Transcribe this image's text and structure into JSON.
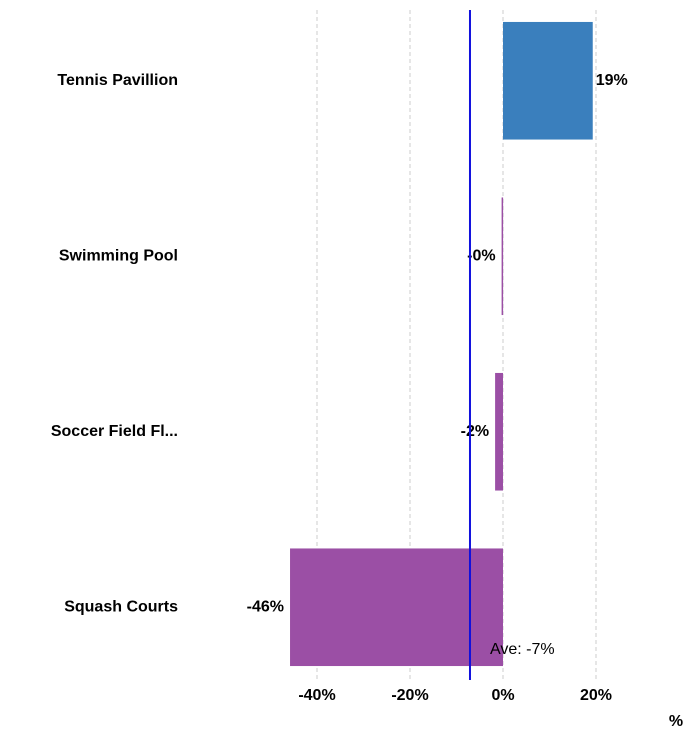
{
  "chart_data": {
    "type": "bar",
    "orientation": "horizontal",
    "categories": [
      "Tennis Pavillion",
      "Swimming Pool",
      "Soccer Field Fl...",
      "Squash Courts"
    ],
    "values": [
      19.3,
      -0.3,
      -1.7,
      -45.8
    ],
    "value_labels": [
      "19%",
      "-0%",
      "-2%",
      "-46%"
    ],
    "colors": [
      "#3a7fbd",
      "#9b4fa5",
      "#9b4fa5",
      "#9b4fa5"
    ],
    "xlim": [
      -50,
      40
    ],
    "xticks": [
      {
        "value": -40,
        "label": "-40%"
      },
      {
        "value": -20,
        "label": "-20%"
      },
      {
        "value": 0,
        "label": "0%"
      },
      {
        "value": 20,
        "label": "20%"
      }
    ],
    "x_label": "%",
    "grid": true,
    "average": {
      "value": -7.1,
      "label": "Ave: -7%",
      "color": "#1010dd"
    }
  }
}
